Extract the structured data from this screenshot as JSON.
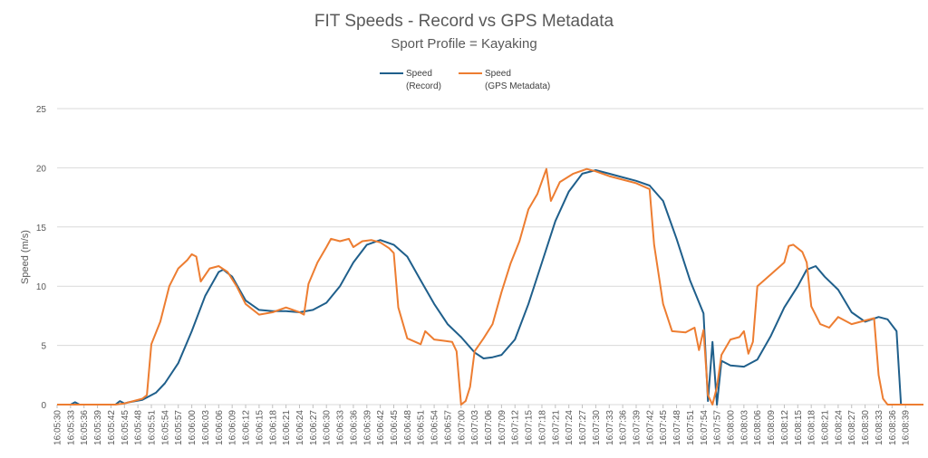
{
  "chart_data": {
    "type": "line",
    "title": "FIT Speeds - Record vs GPS Metadata",
    "subtitle": "Sport Profile = Kayaking",
    "ylabel": "Speed (m/s)",
    "xlabel": "",
    "ylim": [
      0,
      25
    ],
    "yticks": [
      "0",
      "5",
      "10",
      "15",
      "20",
      "25"
    ],
    "grid": true,
    "legend_position": "top",
    "x_tick_labels": [
      "16:05:30",
      "16:05:33",
      "16:05:36",
      "16:05:39",
      "16:05:42",
      "16:05:45",
      "16:05:48",
      "16:05:51",
      "16:05:54",
      "16:05:57",
      "16:06:00",
      "16:06:03",
      "16:06:06",
      "16:06:09",
      "16:06:12",
      "16:06:15",
      "16:06:18",
      "16:06:21",
      "16:06:24",
      "16:06:27",
      "16:06:30",
      "16:06:33",
      "16:06:36",
      "16:06:39",
      "16:06:42",
      "16:06:45",
      "16:06:48",
      "16:06:51",
      "16:06:54",
      "16:06:57",
      "16:07:00",
      "16:07:03",
      "16:07:06",
      "16:07:09",
      "16:07:12",
      "16:07:15",
      "16:07:18",
      "16:07:21",
      "16:07:24",
      "16:07:27",
      "16:07:30",
      "16:07:33",
      "16:07:36",
      "16:07:39",
      "16:07:42",
      "16:07:45",
      "16:07:48",
      "16:07:51",
      "16:07:54",
      "16:07:57",
      "16:08:00",
      "16:08:03",
      "16:08:06",
      "16:08:09",
      "16:08:12",
      "16:08:15",
      "16:08:18",
      "16:08:21",
      "16:08:24",
      "16:08:27",
      "16:08:30",
      "16:08:33",
      "16:08:36",
      "16:08:39"
    ],
    "x_start": "16:05:30",
    "x_end": "16:08:43",
    "series": [
      {
        "name": "Speed (Record)",
        "legend_lines": [
          "Speed",
          "(Record)"
        ],
        "color": "#1f5f8b",
        "points": [
          [
            "16:05:30",
            0
          ],
          [
            "16:05:33",
            0
          ],
          [
            "16:05:34",
            0.2
          ],
          [
            "16:05:35",
            0
          ],
          [
            "16:05:40",
            0
          ],
          [
            "16:05:43",
            0
          ],
          [
            "16:05:44",
            0.3
          ],
          [
            "16:05:45",
            0.1
          ],
          [
            "16:05:46",
            0.2
          ],
          [
            "16:05:49",
            0.4
          ],
          [
            "16:05:52",
            1
          ],
          [
            "16:05:54",
            1.8
          ],
          [
            "16:05:57",
            3.5
          ],
          [
            "16:06:00",
            6.2
          ],
          [
            "16:06:03",
            9.2
          ],
          [
            "16:06:06",
            11.2
          ],
          [
            "16:06:07",
            11.4
          ],
          [
            "16:06:09",
            10.8
          ],
          [
            "16:06:12",
            8.8
          ],
          [
            "16:06:15",
            8
          ],
          [
            "16:06:18",
            7.9
          ],
          [
            "16:06:21",
            7.9
          ],
          [
            "16:06:24",
            7.8
          ],
          [
            "16:06:27",
            8
          ],
          [
            "16:06:30",
            8.6
          ],
          [
            "16:06:33",
            10
          ],
          [
            "16:06:36",
            12
          ],
          [
            "16:06:39",
            13.5
          ],
          [
            "16:06:42",
            13.9
          ],
          [
            "16:06:45",
            13.5
          ],
          [
            "16:06:48",
            12.5
          ],
          [
            "16:06:51",
            10.5
          ],
          [
            "16:06:54",
            8.5
          ],
          [
            "16:06:57",
            6.8
          ],
          [
            "16:07:00",
            5.7
          ],
          [
            "16:07:03",
            4.4
          ],
          [
            "16:07:05",
            3.9
          ],
          [
            "16:07:07",
            4
          ],
          [
            "16:07:09",
            4.2
          ],
          [
            "16:07:12",
            5.5
          ],
          [
            "16:07:15",
            8.5
          ],
          [
            "16:07:18",
            12
          ],
          [
            "16:07:21",
            15.5
          ],
          [
            "16:07:24",
            18
          ],
          [
            "16:07:27",
            19.5
          ],
          [
            "16:07:30",
            19.8
          ],
          [
            "16:07:33",
            19.5
          ],
          [
            "16:07:36",
            19.2
          ],
          [
            "16:07:39",
            18.9
          ],
          [
            "16:07:42",
            18.5
          ],
          [
            "16:07:45",
            17.2
          ],
          [
            "16:07:48",
            14
          ],
          [
            "16:07:51",
            10.5
          ],
          [
            "16:07:54",
            7.7
          ],
          [
            "16:07:55",
            0.3
          ],
          [
            "16:07:56",
            5.3
          ],
          [
            "16:07:57",
            0
          ],
          [
            "16:07:58",
            3.7
          ],
          [
            "16:08:00",
            3.3
          ],
          [
            "16:08:03",
            3.2
          ],
          [
            "16:08:06",
            3.8
          ],
          [
            "16:08:09",
            5.8
          ],
          [
            "16:08:12",
            8.2
          ],
          [
            "16:08:15",
            10
          ],
          [
            "16:08:17",
            11.4
          ],
          [
            "16:08:19",
            11.7
          ],
          [
            "16:08:21",
            10.8
          ],
          [
            "16:08:24",
            9.7
          ],
          [
            "16:08:27",
            7.8
          ],
          [
            "16:08:30",
            7
          ],
          [
            "16:08:33",
            7.4
          ],
          [
            "16:08:35",
            7.2
          ],
          [
            "16:08:37",
            6.2
          ],
          [
            "16:08:38",
            0
          ],
          [
            "16:08:43",
            0
          ]
        ]
      },
      {
        "name": "Speed (GPS Metadata)",
        "legend_lines": [
          "Speed",
          "(GPS Metadata)"
        ],
        "color": "#ed7d31",
        "points": [
          [
            "16:05:30",
            0
          ],
          [
            "16:05:40",
            0
          ],
          [
            "16:05:43",
            0
          ],
          [
            "16:05:45",
            0.1
          ],
          [
            "16:05:47",
            0.3
          ],
          [
            "16:05:49",
            0.5
          ],
          [
            "16:05:50",
            0.8
          ],
          [
            "16:05:51",
            5.1
          ],
          [
            "16:05:53",
            7
          ],
          [
            "16:05:55",
            10
          ],
          [
            "16:05:57",
            11.5
          ],
          [
            "16:05:59",
            12.2
          ],
          [
            "16:06:00",
            12.7
          ],
          [
            "16:06:01",
            12.5
          ],
          [
            "16:06:02",
            10.4
          ],
          [
            "16:06:04",
            11.5
          ],
          [
            "16:06:06",
            11.7
          ],
          [
            "16:06:08",
            11.2
          ],
          [
            "16:06:10",
            10
          ],
          [
            "16:06:12",
            8.5
          ],
          [
            "16:06:15",
            7.6
          ],
          [
            "16:06:18",
            7.8
          ],
          [
            "16:06:21",
            8.2
          ],
          [
            "16:06:24",
            7.8
          ],
          [
            "16:06:25",
            7.6
          ],
          [
            "16:06:26",
            10.2
          ],
          [
            "16:06:28",
            12
          ],
          [
            "16:06:30",
            13.3
          ],
          [
            "16:06:31",
            14
          ],
          [
            "16:06:33",
            13.8
          ],
          [
            "16:06:35",
            14
          ],
          [
            "16:06:36",
            13.3
          ],
          [
            "16:06:38",
            13.8
          ],
          [
            "16:06:40",
            13.9
          ],
          [
            "16:06:42",
            13.7
          ],
          [
            "16:06:44",
            13.2
          ],
          [
            "16:06:45",
            12.8
          ],
          [
            "16:06:46",
            8.2
          ],
          [
            "16:06:48",
            5.6
          ],
          [
            "16:06:51",
            5.1
          ],
          [
            "16:06:52",
            6.2
          ],
          [
            "16:06:54",
            5.5
          ],
          [
            "16:06:56",
            5.4
          ],
          [
            "16:06:58",
            5.3
          ],
          [
            "16:06:59",
            4.5
          ],
          [
            "16:07:00",
            0
          ],
          [
            "16:07:01",
            0.3
          ],
          [
            "16:07:02",
            1.5
          ],
          [
            "16:07:03",
            4.5
          ],
          [
            "16:07:05",
            5.6
          ],
          [
            "16:07:07",
            6.8
          ],
          [
            "16:07:09",
            9.5
          ],
          [
            "16:07:11",
            11.9
          ],
          [
            "16:07:13",
            13.8
          ],
          [
            "16:07:15",
            16.5
          ],
          [
            "16:07:17",
            17.8
          ],
          [
            "16:07:19",
            19.9
          ],
          [
            "16:07:20",
            17.2
          ],
          [
            "16:07:22",
            18.8
          ],
          [
            "16:07:25",
            19.5
          ],
          [
            "16:07:28",
            19.9
          ],
          [
            "16:07:30",
            19.7
          ],
          [
            "16:07:33",
            19.3
          ],
          [
            "16:07:36",
            19
          ],
          [
            "16:07:39",
            18.7
          ],
          [
            "16:07:42",
            18.2
          ],
          [
            "16:07:43",
            13.5
          ],
          [
            "16:07:45",
            8.5
          ],
          [
            "16:07:47",
            6.2
          ],
          [
            "16:07:50",
            6.1
          ],
          [
            "16:07:52",
            6.5
          ],
          [
            "16:07:53",
            4.6
          ],
          [
            "16:07:54",
            6.3
          ],
          [
            "16:07:55",
            0.8
          ],
          [
            "16:07:56",
            0
          ],
          [
            "16:07:57",
            1.5
          ],
          [
            "16:07:58",
            4.2
          ],
          [
            "16:08:00",
            5.5
          ],
          [
            "16:08:02",
            5.7
          ],
          [
            "16:08:03",
            6.2
          ],
          [
            "16:08:04",
            4.3
          ],
          [
            "16:08:05",
            5.3
          ],
          [
            "16:08:06",
            10
          ],
          [
            "16:08:09",
            11
          ],
          [
            "16:08:12",
            12
          ],
          [
            "16:08:13",
            13.4
          ],
          [
            "16:08:14",
            13.5
          ],
          [
            "16:08:16",
            12.9
          ],
          [
            "16:08:17",
            12
          ],
          [
            "16:08:18",
            8.3
          ],
          [
            "16:08:20",
            6.8
          ],
          [
            "16:08:22",
            6.5
          ],
          [
            "16:08:24",
            7.4
          ],
          [
            "16:08:27",
            6.8
          ],
          [
            "16:08:30",
            7.1
          ],
          [
            "16:08:32",
            7.3
          ],
          [
            "16:08:33",
            2.5
          ],
          [
            "16:08:34",
            0.5
          ],
          [
            "16:08:35",
            0
          ],
          [
            "16:08:43",
            0
          ]
        ]
      }
    ]
  }
}
